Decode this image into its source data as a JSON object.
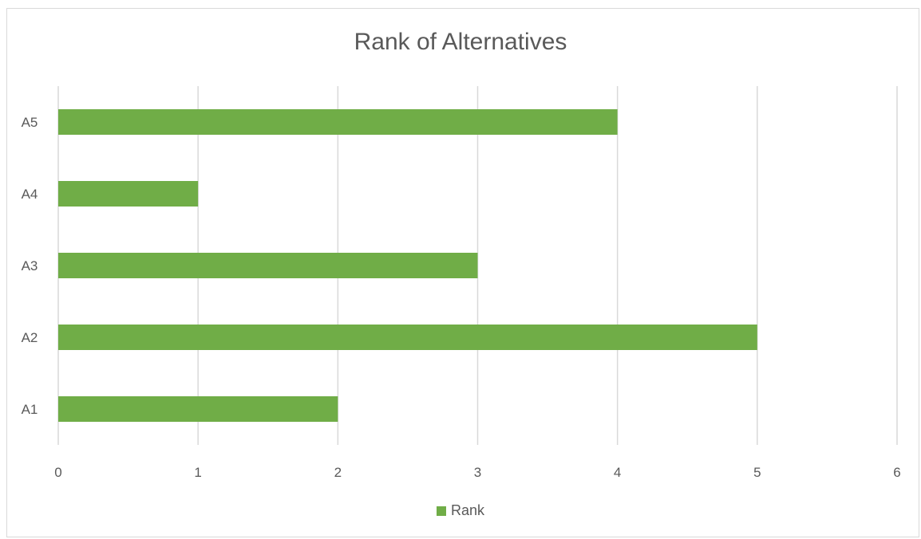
{
  "chart_data": {
    "type": "bar",
    "orientation": "horizontal",
    "title": "Rank of Alternatives",
    "categories": [
      "A1",
      "A2",
      "A3",
      "A4",
      "A5"
    ],
    "series": [
      {
        "name": "Rank",
        "values": [
          2,
          5,
          3,
          1,
          4
        ],
        "color": "#70ad47"
      }
    ],
    "xlim": [
      0,
      6
    ],
    "x_ticks": [
      "0",
      "1",
      "2",
      "3",
      "4",
      "5",
      "6"
    ],
    "grid": true,
    "legend_position": "bottom"
  }
}
